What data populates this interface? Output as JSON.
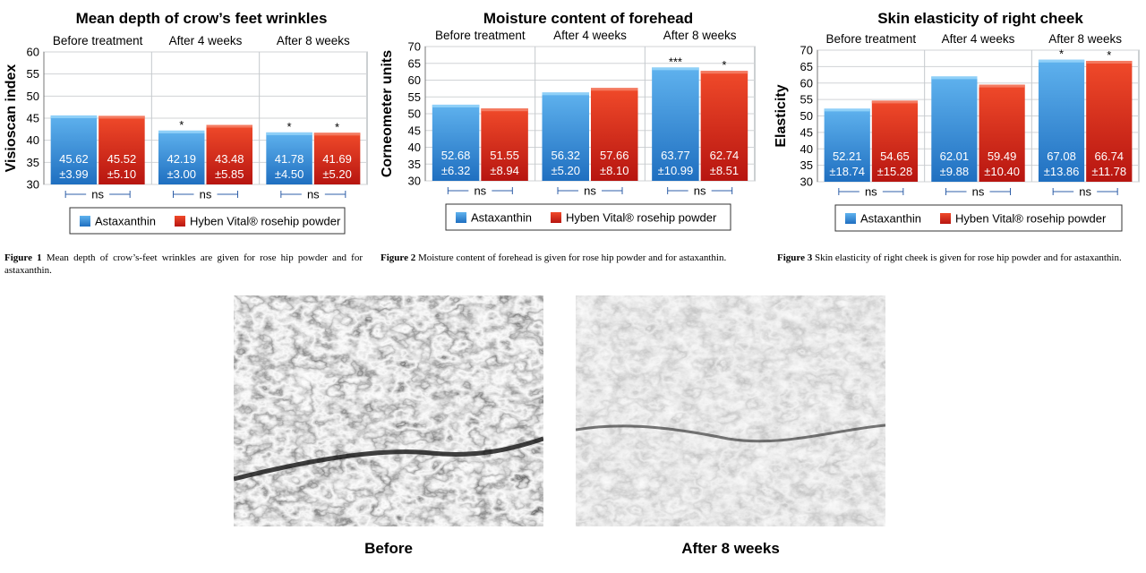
{
  "legend": {
    "astaxanthin": "Astaxanthin",
    "rosehip": "Hyben Vital® rosehip powder"
  },
  "colors": {
    "astaxanthin": "#2f86d6",
    "rosehip": "#d8271b"
  },
  "chart_data": [
    {
      "type": "bar",
      "title": "Mean depth of crow’s feet wrinkles",
      "ylabel": "Visioscan index",
      "ylim": [
        30,
        60
      ],
      "yticks": [
        30,
        35,
        40,
        45,
        50,
        55,
        60
      ],
      "categories": [
        "Before treatment",
        "After 4 weeks",
        "After 8 weeks"
      ],
      "series": [
        {
          "name": "Astaxanthin",
          "values": [
            45.62,
            42.19,
            41.78
          ],
          "labels": [
            "45.62",
            "42.19",
            "41.78"
          ],
          "errors": [
            "±3.99",
            "±3.00",
            "±4.50"
          ],
          "stars": [
            "",
            "*",
            "*"
          ]
        },
        {
          "name": "Hyben Vital® rosehip powder",
          "values": [
            45.52,
            43.48,
            41.69
          ],
          "labels": [
            "45.52",
            "43.48",
            "41.69"
          ],
          "errors": [
            "±5.10",
            "±5.85",
            "±5.20"
          ],
          "stars": [
            "",
            "",
            "*"
          ]
        }
      ],
      "significance": [
        "ns",
        "ns",
        "ns"
      ],
      "legend": "bottom"
    },
    {
      "type": "bar",
      "title": "Moisture content of forehead",
      "ylabel": "Corneometer units",
      "ylim": [
        30,
        70
      ],
      "yticks": [
        30,
        35,
        40,
        45,
        50,
        55,
        60,
        65,
        70
      ],
      "categories": [
        "Before treatment",
        "After 4 weeks",
        "After 8 weeks"
      ],
      "series": [
        {
          "name": "Astaxanthin",
          "values": [
            52.68,
            56.32,
            63.77
          ],
          "labels": [
            "52.68",
            "56.32",
            "63.77"
          ],
          "errors": [
            "±6.32",
            "±5.20",
            "±10.99"
          ],
          "stars": [
            "",
            "",
            "***"
          ]
        },
        {
          "name": "Hyben Vital® rosehip powder",
          "values": [
            51.55,
            57.66,
            62.74
          ],
          "labels": [
            "51.55",
            "57.66",
            "62.74"
          ],
          "errors": [
            "±8.94",
            "±8.10",
            "±8.51"
          ],
          "stars": [
            "",
            "",
            "*"
          ]
        }
      ],
      "significance": [
        "ns",
        "ns",
        "ns"
      ],
      "legend": "bottom"
    },
    {
      "type": "bar",
      "title": "Skin elasticity of right cheek",
      "ylabel": "Elasticity",
      "ylim": [
        30,
        70
      ],
      "yticks": [
        30,
        35,
        40,
        45,
        50,
        55,
        60,
        65,
        70
      ],
      "categories": [
        "Before treatment",
        "After 4 weeks",
        "After 8 weeks"
      ],
      "series": [
        {
          "name": "Astaxanthin",
          "values": [
            52.21,
            62.01,
            67.08
          ],
          "labels": [
            "52.21",
            "62.01",
            "67.08"
          ],
          "errors": [
            "±18.74",
            "±9.88",
            "±13.86"
          ],
          "stars": [
            "",
            "",
            "*"
          ]
        },
        {
          "name": "Hyben Vital® rosehip powder",
          "values": [
            54.65,
            59.49,
            66.74
          ],
          "labels": [
            "54.65",
            "59.49",
            "66.74"
          ],
          "errors": [
            "±15.28",
            "±10.40",
            "±11.78"
          ],
          "stars": [
            "",
            "",
            "*"
          ]
        }
      ],
      "significance": [
        "ns",
        "ns",
        "ns"
      ],
      "legend": "bottom"
    }
  ],
  "captions": [
    {
      "fig": "Figure 1",
      "text": "Mean depth of crow’s-feet wrinkles are given for rose hip powder and for astaxanthin."
    },
    {
      "fig": "Figure 2",
      "text": "Moisture content of forehead is given for rose hip powder and for astaxanthin."
    },
    {
      "fig": "Figure 3",
      "text": "Skin elasticity of right cheek is given for rose hip powder and for astaxanthin."
    }
  ],
  "photos": {
    "before": "Before",
    "after": "After 8 weeks"
  }
}
